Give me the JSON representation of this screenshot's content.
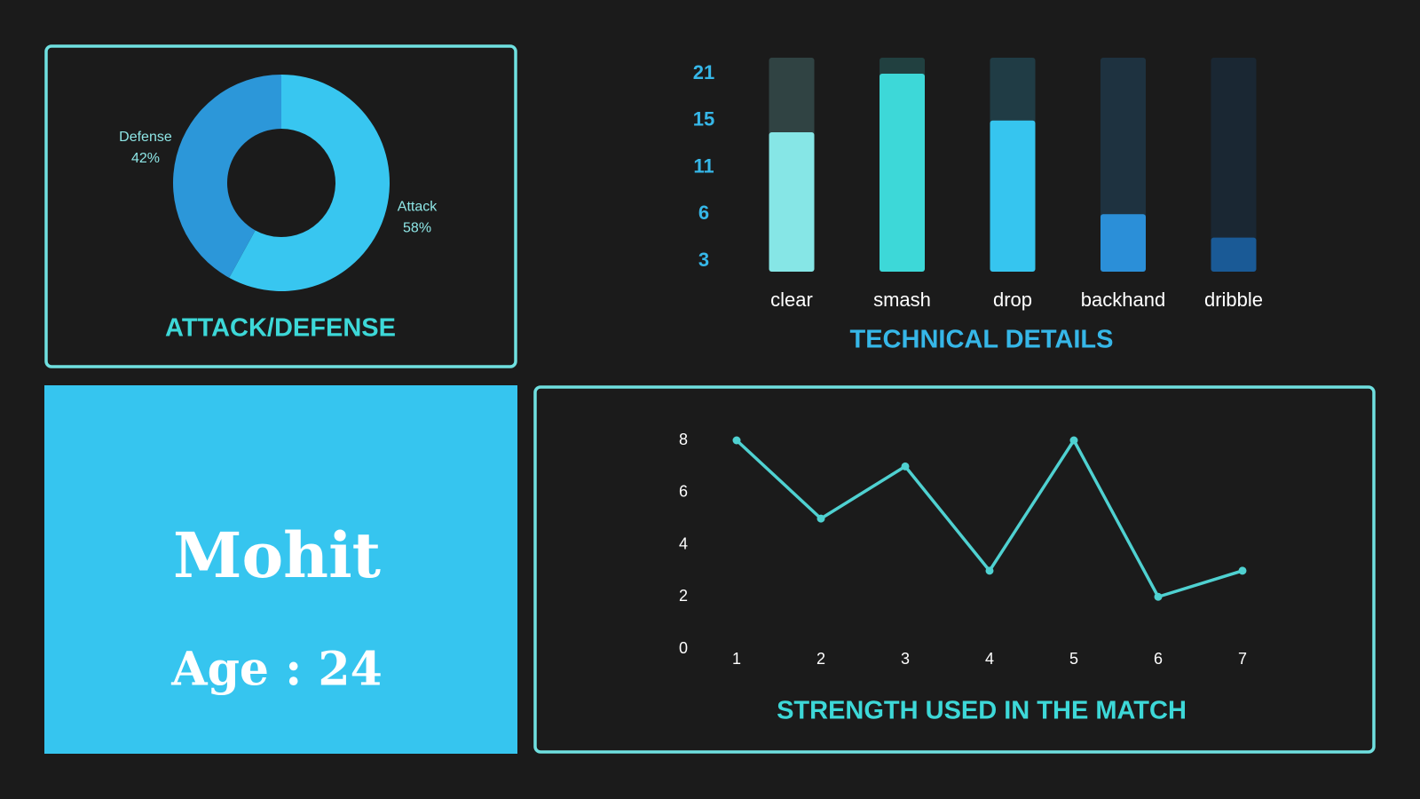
{
  "chart_data": [
    {
      "type": "pie",
      "title": "ATTACK/DEFENSE",
      "donut": true,
      "categories": [
        "Attack",
        "Defense"
      ],
      "values": [
        58,
        42
      ],
      "value_labels": [
        "58%",
        "42%"
      ],
      "colors": [
        "#38c6f0",
        "#2c97d9"
      ]
    },
    {
      "type": "bar",
      "title": "TECHNICAL DETAILS",
      "categories": [
        "clear",
        "smash",
        "drop",
        "backhand",
        "dribble"
      ],
      "values": [
        14,
        21,
        15,
        6,
        4.5
      ],
      "colors": [
        "#86e6e6",
        "#3dd8d8",
        "#36c5ef",
        "#2b8fd8",
        "#1a5a96"
      ],
      "ylim": [
        0,
        24
      ],
      "yticks": [
        3,
        6,
        11,
        15,
        21
      ]
    },
    {
      "type": "line",
      "title": "STRENGTH USED IN THE MATCH",
      "x": [
        1,
        2,
        3,
        4,
        5,
        6,
        7
      ],
      "values": [
        8,
        5,
        7,
        3,
        8,
        2,
        3
      ],
      "color": "#4fd1d1",
      "xlim": [
        1,
        7
      ],
      "xticks": [
        1,
        2,
        3,
        4,
        5,
        6,
        7
      ],
      "ylim": [
        0,
        8
      ],
      "yticks": [
        0,
        2,
        4,
        6,
        8
      ]
    }
  ],
  "profile": {
    "name": "Mohit",
    "age": "Age : 24"
  }
}
